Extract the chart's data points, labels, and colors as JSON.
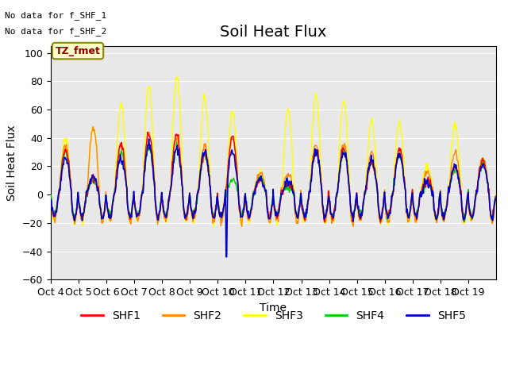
{
  "title": "Soil Heat Flux",
  "ylabel": "Soil Heat Flux",
  "xlabel": "Time",
  "no_data_text": [
    "No data for f_SHF_1",
    "No data for f_SHF_2"
  ],
  "tz_label": "TZ_fmet",
  "ylim": [
    -60,
    105
  ],
  "yticks": [
    -60,
    -40,
    -20,
    0,
    20,
    40,
    60,
    80,
    100
  ],
  "colors": {
    "SHF1": "#ff0000",
    "SHF2": "#ff8800",
    "SHF3": "#ffff00",
    "SHF4": "#00cc00",
    "SHF5": "#0000cc"
  },
  "bg_color": "#e8e8e8",
  "x_tick_labels": [
    "Oct 4",
    "Oct 5",
    "Oct 6",
    "Oct 7",
    "Oct 8",
    "Oct 9",
    "Oct 10",
    "Oct 11",
    "Oct 12",
    "Oct 13",
    "Oct 14",
    "Oct 15",
    "Oct 16",
    "Oct 17",
    "Oct 18",
    "Oct 19"
  ],
  "n_days": 16,
  "pts_per_day": 48,
  "title_fontsize": 14,
  "label_fontsize": 10,
  "tick_fontsize": 9
}
